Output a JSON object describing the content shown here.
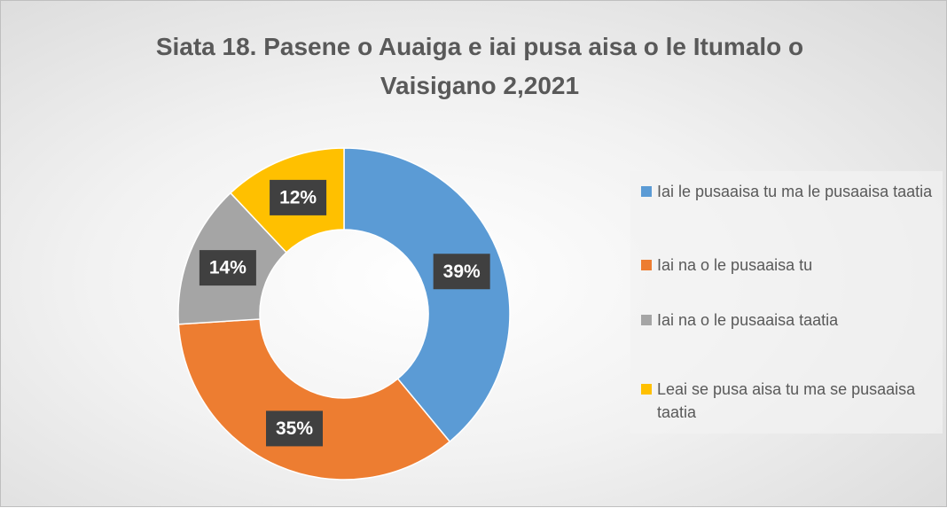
{
  "chart_data": {
    "type": "donut",
    "title": "Siata 18. Pasene o Auaiga e iai pusa aisa o le Itumalo o Vaisigano 2,2021",
    "categories": [
      "Iai le pusaaisa tu ma le pusaaisa taatia",
      "Iai na o le pusaaisa tu",
      "Iai na o le pusaaisa taatia",
      "Leai se pusa aisa tu ma se pusaaisa taatia"
    ],
    "values": [
      39,
      35,
      14,
      12
    ],
    "value_labels": [
      "39%",
      "35%",
      "14%",
      "12%"
    ],
    "colors": [
      "#5b9bd5",
      "#ed7d31",
      "#a5a5a5",
      "#ffc000"
    ],
    "legend": "right"
  }
}
